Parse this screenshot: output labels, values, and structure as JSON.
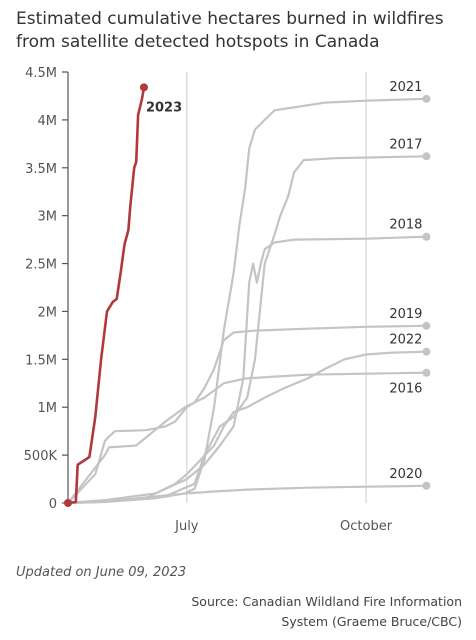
{
  "title": "Estimated cumulative hectares burned in wildfires from satellite detected hotspots in Canada",
  "updated": "Updated on June 09, 2023",
  "source": "Source: Canadian Wildland Fire Information System (Graeme Bruce/CBC)",
  "colors": {
    "highlight": "#b0393b",
    "history": "#c4c4c4",
    "axis": "#555555",
    "vline": "#c9cbd6"
  },
  "chart_data": {
    "type": "line",
    "title": "Estimated cumulative hectares burned in wildfires from satellite detected hotspots in Canada",
    "xlabel": "",
    "ylabel": "",
    "x_domain": [
      "2023-05-01",
      "2023-11-09"
    ],
    "ylim": [
      0,
      4500000
    ],
    "yticks": [
      0,
      500000,
      1000000,
      1500000,
      2000000,
      2500000,
      3000000,
      3500000,
      4000000,
      4500000
    ],
    "ytick_labels": [
      "0",
      "500K",
      "1M",
      "1.5M",
      "2M",
      "2.5M",
      "3M",
      "3.5M",
      "4M",
      "4.5M"
    ],
    "xticks": [
      {
        "date": "2023-07-01",
        "label": "July"
      },
      {
        "date": "2023-10-01",
        "label": "October"
      }
    ],
    "grid": false,
    "series": [
      {
        "name": "2023",
        "highlight": true,
        "points": [
          [
            "2023-05-01",
            0
          ],
          [
            "2023-05-05",
            10000
          ],
          [
            "2023-05-06",
            400000
          ],
          [
            "2023-05-09",
            440000
          ],
          [
            "2023-05-12",
            480000
          ],
          [
            "2023-05-15",
            900000
          ],
          [
            "2023-05-18",
            1500000
          ],
          [
            "2023-05-21",
            2000000
          ],
          [
            "2023-05-24",
            2100000
          ],
          [
            "2023-05-26",
            2130000
          ],
          [
            "2023-05-28",
            2400000
          ],
          [
            "2023-05-30",
            2700000
          ],
          [
            "2023-06-01",
            2850000
          ],
          [
            "2023-06-02",
            3100000
          ],
          [
            "2023-06-04",
            3500000
          ],
          [
            "2023-06-05",
            3560000
          ],
          [
            "2023-06-06",
            4050000
          ],
          [
            "2023-06-08",
            4220000
          ],
          [
            "2023-06-09",
            4340000
          ]
        ]
      },
      {
        "name": "2021",
        "points": [
          [
            "2023-05-01",
            0
          ],
          [
            "2023-05-20",
            10000
          ],
          [
            "2023-06-15",
            50000
          ],
          [
            "2023-06-30",
            100000
          ],
          [
            "2023-07-05",
            150000
          ],
          [
            "2023-07-10",
            450000
          ],
          [
            "2023-07-15",
            1000000
          ],
          [
            "2023-07-20",
            1800000
          ],
          [
            "2023-07-25",
            2400000
          ],
          [
            "2023-07-28",
            2900000
          ],
          [
            "2023-07-31",
            3300000
          ],
          [
            "2023-08-02",
            3700000
          ],
          [
            "2023-08-05",
            3900000
          ],
          [
            "2023-08-10",
            4000000
          ],
          [
            "2023-08-15",
            4100000
          ],
          [
            "2023-08-25",
            4130000
          ],
          [
            "2023-09-10",
            4180000
          ],
          [
            "2023-10-01",
            4200000
          ],
          [
            "2023-11-01",
            4220000
          ]
        ]
      },
      {
        "name": "2017",
        "points": [
          [
            "2023-05-01",
            0
          ],
          [
            "2023-05-25",
            20000
          ],
          [
            "2023-06-20",
            70000
          ],
          [
            "2023-07-05",
            200000
          ],
          [
            "2023-07-10",
            500000
          ],
          [
            "2023-07-18",
            800000
          ],
          [
            "2023-07-25",
            900000
          ],
          [
            "2023-08-01",
            1100000
          ],
          [
            "2023-08-05",
            1500000
          ],
          [
            "2023-08-10",
            2500000
          ],
          [
            "2023-08-15",
            2800000
          ],
          [
            "2023-08-18",
            3000000
          ],
          [
            "2023-08-22",
            3200000
          ],
          [
            "2023-08-25",
            3450000
          ],
          [
            "2023-08-30",
            3580000
          ],
          [
            "2023-09-15",
            3600000
          ],
          [
            "2023-10-10",
            3610000
          ],
          [
            "2023-11-01",
            3620000
          ]
        ]
      },
      {
        "name": "2018",
        "points": [
          [
            "2023-05-01",
            0
          ],
          [
            "2023-05-20",
            30000
          ],
          [
            "2023-06-15",
            100000
          ],
          [
            "2023-07-01",
            250000
          ],
          [
            "2023-07-10",
            400000
          ],
          [
            "2023-07-18",
            600000
          ],
          [
            "2023-07-25",
            800000
          ],
          [
            "2023-07-30",
            1300000
          ],
          [
            "2023-08-02",
            2300000
          ],
          [
            "2023-08-04",
            2500000
          ],
          [
            "2023-08-06",
            2300000
          ],
          [
            "2023-08-08",
            2500000
          ],
          [
            "2023-08-10",
            2650000
          ],
          [
            "2023-08-15",
            2720000
          ],
          [
            "2023-08-25",
            2750000
          ],
          [
            "2023-10-01",
            2760000
          ],
          [
            "2023-11-01",
            2780000
          ]
        ]
      },
      {
        "name": "2019",
        "points": [
          [
            "2023-05-01",
            0
          ],
          [
            "2023-05-15",
            300000
          ],
          [
            "2023-05-20",
            650000
          ],
          [
            "2023-05-25",
            750000
          ],
          [
            "2023-06-10",
            760000
          ],
          [
            "2023-06-20",
            800000
          ],
          [
            "2023-06-25",
            850000
          ],
          [
            "2023-07-01",
            1000000
          ],
          [
            "2023-07-05",
            1050000
          ],
          [
            "2023-07-10",
            1200000
          ],
          [
            "2023-07-15",
            1400000
          ],
          [
            "2023-07-20",
            1700000
          ],
          [
            "2023-07-25",
            1780000
          ],
          [
            "2023-08-05",
            1800000
          ],
          [
            "2023-09-01",
            1820000
          ],
          [
            "2023-10-01",
            1840000
          ],
          [
            "2023-11-01",
            1850000
          ]
        ]
      },
      {
        "name": "2022",
        "points": [
          [
            "2023-05-01",
            0
          ],
          [
            "2023-05-25",
            20000
          ],
          [
            "2023-06-10",
            50000
          ],
          [
            "2023-06-25",
            200000
          ],
          [
            "2023-07-01",
            300000
          ],
          [
            "2023-07-08",
            450000
          ],
          [
            "2023-07-15",
            600000
          ],
          [
            "2023-07-20",
            800000
          ],
          [
            "2023-07-25",
            950000
          ],
          [
            "2023-08-01",
            1000000
          ],
          [
            "2023-08-10",
            1100000
          ],
          [
            "2023-08-20",
            1200000
          ],
          [
            "2023-09-01",
            1300000
          ],
          [
            "2023-09-10",
            1400000
          ],
          [
            "2023-09-20",
            1500000
          ],
          [
            "2023-10-01",
            1550000
          ],
          [
            "2023-10-15",
            1570000
          ],
          [
            "2023-11-01",
            1580000
          ]
        ]
      },
      {
        "name": "2016",
        "points": [
          [
            "2023-05-01",
            0
          ],
          [
            "2023-05-20",
            500000
          ],
          [
            "2023-05-22",
            580000
          ],
          [
            "2023-06-05",
            600000
          ],
          [
            "2023-06-20",
            850000
          ],
          [
            "2023-06-30",
            1000000
          ],
          [
            "2023-07-10",
            1100000
          ],
          [
            "2023-07-20",
            1250000
          ],
          [
            "2023-07-31",
            1300000
          ],
          [
            "2023-08-15",
            1320000
          ],
          [
            "2023-09-01",
            1340000
          ],
          [
            "2023-10-01",
            1350000
          ],
          [
            "2023-11-01",
            1360000
          ]
        ]
      },
      {
        "name": "2020",
        "points": [
          [
            "2023-05-01",
            0
          ],
          [
            "2023-06-01",
            40000
          ],
          [
            "2023-07-01",
            100000
          ],
          [
            "2023-07-15",
            120000
          ],
          [
            "2023-08-01",
            140000
          ],
          [
            "2023-09-01",
            160000
          ],
          [
            "2023-10-01",
            170000
          ],
          [
            "2023-11-01",
            180000
          ]
        ]
      }
    ]
  }
}
